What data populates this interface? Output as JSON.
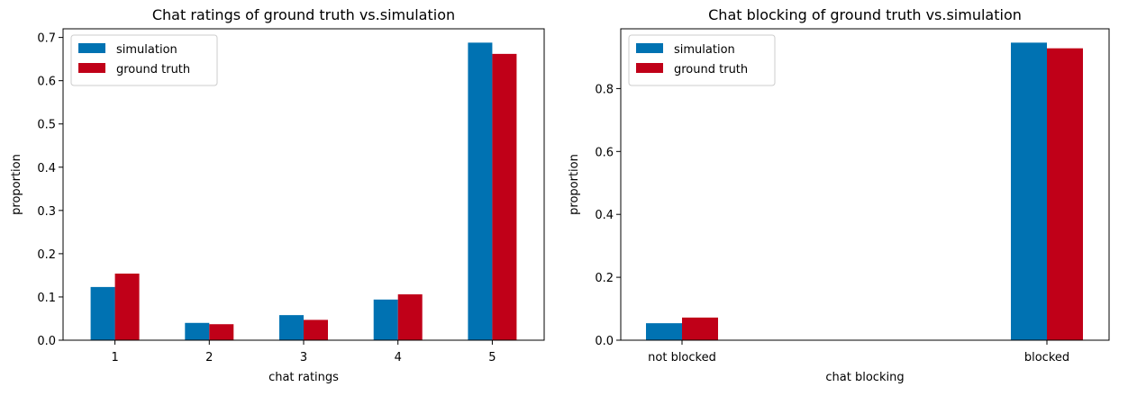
{
  "chart_data": [
    {
      "type": "bar",
      "title": "Chat ratings of ground truth vs.simulation",
      "xlabel": "chat ratings",
      "ylabel": "proportion",
      "categories": [
        "1",
        "2",
        "3",
        "4",
        "5"
      ],
      "ylim": [
        0,
        0.72
      ],
      "yticks": [
        "0.0",
        "0.1",
        "0.2",
        "0.3",
        "0.4",
        "0.5",
        "0.6",
        "0.7"
      ],
      "grid": false,
      "legend_position": "top-left",
      "series": [
        {
          "name": "simulation",
          "color": "#0072b2",
          "values": [
            0.123,
            0.04,
            0.058,
            0.094,
            0.688
          ]
        },
        {
          "name": "ground truth",
          "color": "#c00018",
          "values": [
            0.154,
            0.037,
            0.047,
            0.106,
            0.662
          ]
        }
      ]
    },
    {
      "type": "bar",
      "title": "Chat blocking of ground truth vs.simulation",
      "xlabel": "chat blocking",
      "ylabel": "proportion",
      "categories": [
        "not blocked",
        "blocked"
      ],
      "ylim": [
        0,
        0.99
      ],
      "yticks": [
        "0.0",
        "0.2",
        "0.4",
        "0.6",
        "0.8"
      ],
      "grid": false,
      "legend_position": "top-left",
      "series": [
        {
          "name": "simulation",
          "color": "#0072b2",
          "values": [
            0.054,
            0.946
          ]
        },
        {
          "name": "ground truth",
          "color": "#c00018",
          "values": [
            0.072,
            0.928
          ]
        }
      ]
    }
  ]
}
